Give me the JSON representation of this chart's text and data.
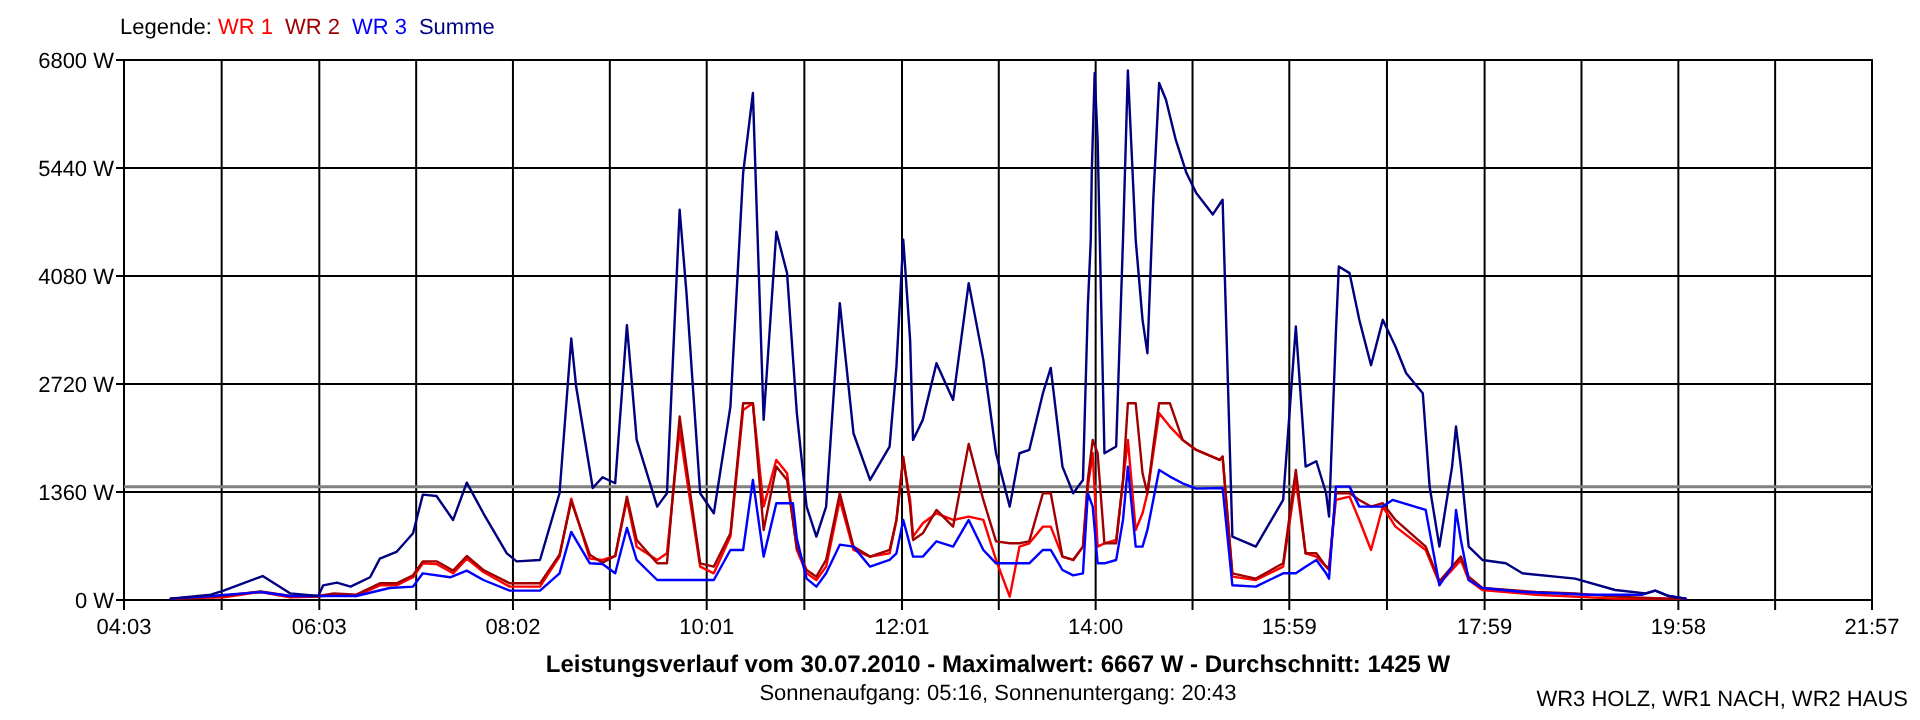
{
  "chart_data": {
    "type": "line",
    "title": "Leistungsverlauf vom 30.07.2010 - Maximalwert: 6667 W - Durchschnitt: 1425 W",
    "subtitle": "Sonnenaufgang: 05:16, Sonnenuntergang: 20:43",
    "legend_title": "Legende:",
    "legend": "top left",
    "grid": true,
    "marker": "none",
    "line_style": "solid",
    "annotations": [
      "WR3 HOLZ, WR1 NACH, WR2 HAUS"
    ],
    "xlim": [
      4.05,
      21.95
    ],
    "xticks": [
      {
        "value": 4.05,
        "label": "04:03"
      },
      {
        "value": 5.05,
        "label": null
      },
      {
        "value": 6.05,
        "label": "06:03"
      },
      {
        "value": 7.042,
        "label": null
      },
      {
        "value": 8.033,
        "label": "08:02"
      },
      {
        "value": 9.025,
        "label": null
      },
      {
        "value": 10.017,
        "label": "10:01"
      },
      {
        "value": 11.017,
        "label": null
      },
      {
        "value": 12.017,
        "label": "12:01"
      },
      {
        "value": 13.008,
        "label": null
      },
      {
        "value": 14,
        "label": "14:00"
      },
      {
        "value": 14.992,
        "label": null
      },
      {
        "value": 15.983,
        "label": "15:59"
      },
      {
        "value": 16.983,
        "label": null
      },
      {
        "value": 17.983,
        "label": "17:59"
      },
      {
        "value": 18.975,
        "label": null
      },
      {
        "value": 19.967,
        "label": "19:58"
      },
      {
        "value": 20.958,
        "label": null
      },
      {
        "value": 21.95,
        "label": "21:57"
      }
    ],
    "ylim": [
      0,
      6800
    ],
    "yticks": [
      {
        "value": 0,
        "label": "0 W"
      },
      {
        "value": 1360,
        "label": "1360 W"
      },
      {
        "value": 2720,
        "label": "2720 W"
      },
      {
        "value": 4080,
        "label": "4080 W"
      },
      {
        "value": 5440,
        "label": "5440 W"
      },
      {
        "value": 6800,
        "label": "6800 W"
      }
    ],
    "ref_lines": [
      {
        "axis": "y",
        "value": 1425,
        "color": "#808080"
      }
    ],
    "series": [
      {
        "name": "WR 1",
        "color": "#ff0000",
        "x": [
          4.53,
          5.07,
          5.45,
          5.75,
          6.04,
          6.2,
          6.43,
          6.67,
          6.84,
          7.01,
          7.11,
          7.25,
          7.42,
          7.56,
          7.73,
          8.0,
          8.31,
          8.51,
          8.63,
          8.82,
          8.95,
          9.08,
          9.2,
          9.3,
          9.51,
          9.61,
          9.74,
          9.81,
          9.95,
          10.09,
          10.26,
          10.39,
          10.49,
          10.6,
          10.73,
          10.84,
          10.94,
          11.04,
          11.14,
          11.24,
          11.38,
          11.52,
          11.69,
          11.89,
          11.96,
          12.03,
          12.1,
          12.13,
          12.23,
          12.37,
          12.54,
          12.7,
          12.85,
          12.98,
          13.12,
          13.22,
          13.32,
          13.46,
          13.54,
          13.66,
          13.77,
          13.87,
          13.92,
          13.97,
          14.02,
          14.09,
          14.21,
          14.33,
          14.41,
          14.48,
          14.53,
          14.65,
          14.76,
          14.89,
          15.03,
          15.27,
          15.3,
          15.4,
          15.64,
          15.92,
          16.05,
          16.15,
          16.26,
          16.36,
          16.39,
          16.46,
          16.6,
          16.7,
          16.82,
          16.94,
          17.07,
          17.38,
          17.52,
          17.65,
          17.74,
          17.82,
          17.96,
          18.51,
          19.32,
          20.04
        ],
        "values": [
          17,
          34,
          101,
          34,
          42,
          67,
          50,
          185,
          185,
          286,
          462,
          454,
          336,
          521,
          353,
          168,
          168,
          546,
          1277,
          521,
          504,
          554,
          1260,
          672,
          504,
          588,
          2142,
          1554,
          420,
          336,
          798,
          2394,
          2478,
          1176,
          1764,
          1596,
          630,
          336,
          252,
          420,
          1260,
          630,
          546,
          588,
          1008,
          1764,
          1260,
          798,
          966,
          1092,
          1008,
          1050,
          1008,
          504,
          42,
          672,
          714,
          924,
          924,
          546,
          504,
          672,
          1428,
          1848,
          672,
          714,
          756,
          2016,
          882,
          1092,
          1344,
          2352,
          2184,
          2016,
          1890,
          1764,
          1806,
          294,
          252,
          420,
          1512,
          588,
          546,
          420,
          420,
          1260,
          1302,
          1008,
          630,
          1176,
          924,
          630,
          210,
          378,
          504,
          252,
          126,
          67,
          17,
          17
        ]
      },
      {
        "name": "WR 2",
        "color": "#a00000",
        "x": [
          4.53,
          5.07,
          5.45,
          5.75,
          6.04,
          6.2,
          6.43,
          6.67,
          6.84,
          7.01,
          7.11,
          7.25,
          7.42,
          7.56,
          7.73,
          8.0,
          8.31,
          8.51,
          8.63,
          8.82,
          8.95,
          9.08,
          9.2,
          9.3,
          9.51,
          9.61,
          9.74,
          9.81,
          9.95,
          10.09,
          10.26,
          10.39,
          10.49,
          10.6,
          10.73,
          10.84,
          10.94,
          11.04,
          11.14,
          11.24,
          11.38,
          11.52,
          11.69,
          11.89,
          11.96,
          12.03,
          12.1,
          12.13,
          12.23,
          12.37,
          12.54,
          12.7,
          12.85,
          12.98,
          13.12,
          13.22,
          13.32,
          13.46,
          13.54,
          13.66,
          13.77,
          13.87,
          13.92,
          13.97,
          14.02,
          14.09,
          14.21,
          14.28,
          14.33,
          14.41,
          14.48,
          14.53,
          14.59,
          14.65,
          14.76,
          14.89,
          15.03,
          15.27,
          15.3,
          15.4,
          15.64,
          15.92,
          16.05,
          16.15,
          16.26,
          16.36,
          16.39,
          16.46,
          16.6,
          16.7,
          16.82,
          16.94,
          17.07,
          17.38,
          17.52,
          17.65,
          17.74,
          17.82,
          17.96,
          18.51,
          18.91,
          19.32,
          19.87,
          20.04
        ],
        "values": [
          17,
          50,
          109,
          50,
          50,
          84,
          67,
          210,
          210,
          311,
          487,
          487,
          370,
          554,
          378,
          210,
          210,
          571,
          1243,
          571,
          470,
          554,
          1302,
          756,
          462,
          462,
          2310,
          1680,
          462,
          420,
          840,
          2478,
          2478,
          882,
          1680,
          1512,
          655,
          378,
          294,
          504,
          1344,
          672,
          546,
          630,
          1008,
          1806,
          1176,
          756,
          840,
          1134,
          924,
          1966,
          1260,
          739,
          714,
          714,
          739,
          1344,
          1344,
          546,
          504,
          672,
          1512,
          2016,
          1848,
          714,
          714,
          1512,
          2478,
          2478,
          1596,
          1344,
          1932,
          2478,
          2478,
          2016,
          1890,
          1764,
          1806,
          336,
          269,
          462,
          1638,
          588,
          588,
          420,
          378,
          1344,
          1344,
          1260,
          1176,
          1218,
          1008,
          672,
          235,
          420,
          546,
          294,
          151,
          101,
          84,
          42,
          17,
          17
        ]
      },
      {
        "name": "WR 3",
        "color": "#0000ff",
        "x": [
          4.53,
          4.94,
          5.45,
          5.75,
          6.04,
          6.43,
          6.77,
          7.01,
          7.11,
          7.39,
          7.56,
          7.73,
          8.0,
          8.31,
          8.51,
          8.63,
          8.82,
          8.95,
          9.08,
          9.2,
          9.3,
          9.51,
          9.95,
          10.09,
          10.26,
          10.39,
          10.49,
          10.6,
          10.73,
          10.9,
          10.94,
          11.04,
          11.14,
          11.24,
          11.38,
          11.52,
          11.69,
          11.89,
          11.96,
          12.03,
          12.13,
          12.23,
          12.37,
          12.54,
          12.7,
          12.85,
          12.98,
          13.32,
          13.46,
          13.54,
          13.66,
          13.77,
          13.87,
          13.92,
          13.97,
          14.02,
          14.09,
          14.21,
          14.28,
          14.33,
          14.41,
          14.48,
          14.53,
          14.65,
          14.76,
          14.89,
          15.03,
          15.3,
          15.4,
          15.64,
          15.92,
          16.05,
          16.15,
          16.26,
          16.36,
          16.39,
          16.46,
          16.6,
          16.7,
          16.94,
          17.04,
          17.38,
          17.52,
          17.65,
          17.69,
          17.74,
          17.82,
          17.96,
          18.37,
          19.05,
          19.6,
          19.73,
          19.87,
          20.04
        ],
        "values": [
          17,
          50,
          101,
          50,
          50,
          50,
          151,
          168,
          336,
          286,
          370,
          252,
          118,
          118,
          336,
          857,
          462,
          454,
          336,
          907,
          504,
          252,
          252,
          252,
          630,
          630,
          1512,
          546,
          1218,
          1218,
          773,
          269,
          168,
          336,
          697,
          672,
          420,
          504,
          588,
          1008,
          546,
          546,
          739,
          672,
          1008,
          630,
          462,
          462,
          630,
          630,
          378,
          311,
          336,
          1344,
          1176,
          462,
          462,
          504,
          1008,
          1680,
          672,
          672,
          882,
          1638,
          1554,
          1470,
          1403,
          1411,
          185,
          168,
          336,
          336,
          420,
          504,
          336,
          269,
          1428,
          1428,
          1176,
          1176,
          1260,
          1134,
          185,
          420,
          1134,
          756,
          252,
          151,
          101,
          67,
          67,
          118,
          50,
          17
        ]
      },
      {
        "name": "Summe",
        "color": "#000080",
        "x": [
          4.53,
          4.94,
          5.07,
          5.47,
          5.75,
          6.04,
          6.09,
          6.23,
          6.37,
          6.57,
          6.67,
          6.84,
          7.01,
          7.11,
          7.25,
          7.42,
          7.56,
          7.73,
          7.97,
          8.07,
          8.31,
          8.51,
          8.63,
          8.68,
          8.85,
          8.95,
          9.08,
          9.2,
          9.3,
          9.51,
          9.61,
          9.74,
          9.81,
          9.95,
          10.09,
          10.26,
          10.39,
          10.49,
          10.6,
          10.73,
          10.84,
          10.94,
          11.04,
          11.14,
          11.24,
          11.38,
          11.52,
          11.69,
          11.89,
          11.96,
          12.03,
          12.1,
          12.13,
          12.23,
          12.37,
          12.54,
          12.7,
          12.85,
          12.98,
          13.12,
          13.22,
          13.32,
          13.46,
          13.54,
          13.66,
          13.77,
          13.87,
          13.92,
          13.95,
          13.96,
          13.99,
          14.02,
          14.09,
          14.21,
          14.28,
          14.33,
          14.41,
          14.48,
          14.53,
          14.59,
          14.65,
          14.72,
          14.82,
          14.93,
          15.03,
          15.2,
          15.3,
          15.4,
          15.64,
          15.92,
          16.05,
          16.15,
          16.26,
          16.36,
          16.39,
          16.46,
          16.49,
          16.6,
          16.7,
          16.82,
          16.94,
          17.07,
          17.18,
          17.35,
          17.42,
          17.52,
          17.65,
          17.69,
          17.74,
          17.82,
          17.96,
          18.2,
          18.37,
          18.91,
          19.32,
          19.63,
          19.73,
          19.87,
          20.04
        ],
        "values": [
          17,
          67,
          118,
          302,
          84,
          50,
          185,
          218,
          168,
          286,
          521,
          605,
          840,
          1327,
          1310,
          1008,
          1478,
          1092,
          588,
          487,
          504,
          1344,
          3293,
          2688,
          1411,
          1546,
          1470,
          3461,
          2016,
          1176,
          1344,
          4914,
          3864,
          1344,
          1092,
          2436,
          5376,
          6384,
          2268,
          4637,
          4116,
          2352,
          1176,
          798,
          1176,
          3738,
          2100,
          1512,
          1932,
          2940,
          4536,
          3276,
          2016,
          2268,
          2982,
          2520,
          3990,
          3024,
          1848,
          1176,
          1848,
          1890,
          2604,
          2923,
          1680,
          1344,
          1512,
          3696,
          4536,
          5376,
          6636,
          5796,
          1848,
          1932,
          4536,
          6667,
          4536,
          3528,
          3108,
          5040,
          6510,
          6300,
          5796,
          5376,
          5124,
          4855,
          5040,
          798,
          672,
          1260,
          3444,
          1680,
          1747,
          1344,
          1050,
          3360,
          4200,
          4116,
          3528,
          2957,
          3528,
          3192,
          2856,
          2604,
          1428,
          672,
          1680,
          2184,
          1680,
          672,
          504,
          462,
          336,
          269,
          126,
          84,
          118,
          50,
          17
        ]
      }
    ]
  }
}
